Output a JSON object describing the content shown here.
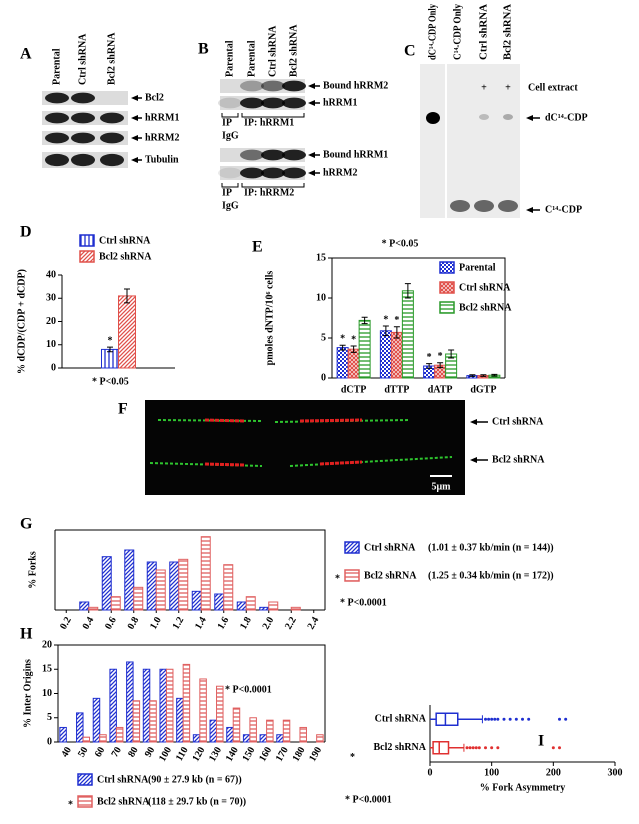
{
  "panels": {
    "a": {
      "letter": "A",
      "lanes": [
        "Parental",
        "Ctrl shRNA",
        "Bcl2 shRNA"
      ],
      "bands": [
        "Bcl2",
        "hRRM1",
        "hRRM2",
        "Tubulin"
      ]
    },
    "b": {
      "letter": "B",
      "lanes": [
        "Parental",
        "Parental",
        "Ctrl shRNA",
        "Bcl2 shRNA"
      ],
      "top": {
        "bands": [
          "Bound hRRM2",
          "hRRM1"
        ],
        "ip": "IP",
        "igg": "IgG",
        "group": "IP: hRRM1"
      },
      "bottom": {
        "bands": [
          "Bound hRRM1",
          "hRRM2"
        ],
        "ip": "IP",
        "igg": "IgG",
        "group": "IP: hRRM2"
      }
    },
    "c": {
      "letter": "C",
      "lanes": [
        "dC¹⁴-CDP Only",
        "C¹⁴-CDP Only",
        "Ctrl shRNA",
        "Bcl2 shRNA"
      ],
      "plus": [
        "+",
        "+"
      ],
      "extract": "Cell extract",
      "bands": [
        "dC¹⁴-CDP",
        "C¹⁴-CDP"
      ]
    },
    "f": {
      "letter": "F",
      "labels": [
        "Ctrl shRNA",
        "Bcl2 shRNA"
      ],
      "scale": "5μm"
    }
  },
  "chart_data": [
    {
      "letter": "D",
      "type": "bar",
      "ylabel": "% dCDP/(CDP + dCDP)",
      "categories": [
        null
      ],
      "series": [
        {
          "name": "Ctrl shRNA",
          "color": "#1f2fd0",
          "pattern": "vertical",
          "values": [
            8
          ],
          "errors": [
            1
          ],
          "annotations": [
            "*"
          ]
        },
        {
          "name": "Bcl2 shRNA",
          "color": "#e0504a",
          "pattern": "diagonal",
          "values": [
            31
          ],
          "errors": [
            3
          ]
        }
      ],
      "ylim": [
        0,
        40
      ],
      "yticks": [
        0,
        10,
        20,
        30,
        40
      ],
      "note": "* P<0.05",
      "legend": "top"
    },
    {
      "letter": "E",
      "type": "bar",
      "title": "* P<0.05",
      "ylabel": "pmoles dNTP/10⁶ cells",
      "categories": [
        "dCTP",
        "dTTP",
        "dATP",
        "dGTP"
      ],
      "series": [
        {
          "name": "Parental",
          "color": "#1f2fd0",
          "pattern": "checker",
          "values": [
            3.8,
            5.9,
            1.5,
            0.3
          ],
          "errors": [
            0.3,
            0.6,
            0.3,
            0.1
          ],
          "annotations": [
            "*",
            "*",
            "*",
            null
          ]
        },
        {
          "name": "Ctrl shRNA",
          "color": "#e0504a",
          "pattern": "crosshatch",
          "values": [
            3.6,
            5.7,
            1.6,
            0.3
          ],
          "errors": [
            0.4,
            0.7,
            0.3,
            0.1
          ],
          "annotations": [
            "*",
            "*",
            "*",
            null
          ]
        },
        {
          "name": "Bcl2 shRNA",
          "color": "#2a9a2a",
          "pattern": "horizontal",
          "values": [
            7.2,
            10.9,
            3.0,
            0.35
          ],
          "errors": [
            0.4,
            0.9,
            0.5,
            0.1
          ]
        }
      ],
      "ylim": [
        0,
        15
      ],
      "yticks": [
        0,
        5,
        10,
        15
      ],
      "legend": "upper right"
    },
    {
      "letter": "G",
      "type": "bar",
      "ylabel": "% Forks",
      "x": [
        0.4,
        0.6,
        0.8,
        1.0,
        1.2,
        1.4,
        1.6,
        1.8,
        2.0,
        2.2
      ],
      "series": [
        {
          "name": "Ctrl shRNA",
          "description": "(1.01 ± 0.37 kb/min (n = 144))",
          "color": "#1f2fd0",
          "pattern": "diagonal",
          "values": [
            3,
            20,
            22.5,
            18,
            18,
            7,
            6,
            3,
            1,
            0
          ]
        },
        {
          "name": "Bcl2 shRNA",
          "description": "(1.25 ± 0.34 kb/min (n = 172))",
          "star": "*",
          "color": "#e06060",
          "pattern": "horizontal",
          "values": [
            1,
            5,
            8.5,
            15,
            19,
            27.5,
            17,
            5,
            3,
            1
          ]
        }
      ],
      "xlim": [
        0.1,
        2.5
      ],
      "xticks": [
        0.2,
        0.4,
        0.6,
        0.8,
        {
          "value": 1.0,
          "label": "1.0"
        },
        1.2,
        1.4,
        1.6,
        1.8,
        {
          "value": 2.0,
          "label": "2.0"
        },
        2.2,
        2.4
      ],
      "ylim": [
        0,
        30
      ],
      "note": "* P<0.0001",
      "legend": "right"
    },
    {
      "letter": "H",
      "type": "bar",
      "ylabel": "% Inter Origins",
      "categories": [
        40,
        50,
        60,
        70,
        80,
        90,
        100,
        110,
        120,
        130,
        140,
        150,
        160,
        170,
        180,
        190
      ],
      "series": [
        {
          "name": "Ctrl shRNA",
          "description": "(90 ± 27.9 kb (n = 67))",
          "color": "#1f2fd0",
          "pattern": "diagonal",
          "values": [
            3,
            6,
            9,
            15,
            16.5,
            15,
            15,
            9,
            1.5,
            4.5,
            3,
            1.5,
            1.5,
            1.5,
            0,
            0
          ]
        },
        {
          "name": "Bcl2 shRNA",
          "description": "(118 ± 29.7 kb (n = 70))",
          "star": "*",
          "color": "#e06060",
          "pattern": "horizontal",
          "values": [
            0,
            1,
            1.5,
            3,
            8.5,
            8.5,
            15,
            16,
            13,
            11.5,
            7,
            5,
            4.5,
            4.5,
            3,
            1.5
          ]
        }
      ],
      "ylim": [
        0,
        20
      ],
      "yticks": [
        0,
        5,
        10,
        15,
        20
      ],
      "note": "* P<0.0001",
      "legend": "bottom"
    },
    {
      "letter": "I",
      "type": "box",
      "xlabel": "% Fork Asymmetry",
      "xlim": [
        0,
        300
      ],
      "xticks": [
        0,
        100,
        200,
        300
      ],
      "boxes": [
        {
          "name": "Ctrl shRNA",
          "color": "#1f2fd0",
          "min": 0,
          "q1": 10,
          "median": 25,
          "q3": 45,
          "max": 85,
          "outliers": [
            90,
            95,
            100,
            105,
            110,
            120,
            130,
            140,
            150,
            160,
            210,
            220
          ]
        },
        {
          "name": "Bcl2 shRNA",
          "star": "*",
          "color": "#e03030",
          "min": 0,
          "q1": 5,
          "median": 15,
          "q3": 30,
          "max": 55,
          "outliers": [
            60,
            65,
            70,
            75,
            80,
            90,
            100,
            110,
            200,
            210
          ]
        }
      ],
      "note": "* P<0.0001"
    }
  ]
}
